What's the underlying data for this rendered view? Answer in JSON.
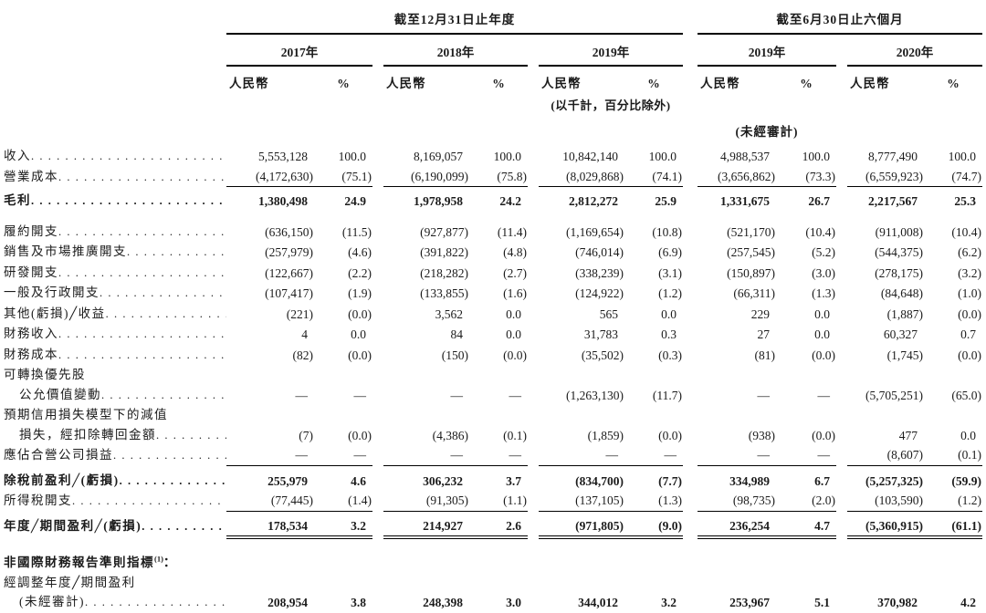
{
  "header": {
    "period_annual": "截至12月31日止年度",
    "period_interim": "截至6月30日止六個月",
    "years_annual": [
      "2017年",
      "2018年",
      "2019年"
    ],
    "years_interim": [
      "2019年",
      "2020年"
    ],
    "currency_label": "人民幣",
    "percent_label": "%",
    "units_note": "(以千計，百分比除外)",
    "unaudited_note": "(未經審計)"
  },
  "table": {
    "rows": [
      {
        "label": "收入",
        "leader": true,
        "values": [
          "5,553,128",
          "100.0",
          "8,169,057",
          "100.0",
          "10,842,140",
          "100.0",
          "4,988,537",
          "100.0",
          "8,777,490",
          "100.0"
        ]
      },
      {
        "label": "營業成本",
        "leader": true,
        "rule": "single",
        "values": [
          "(4,172,630)",
          "(75.1)",
          "(6,190,099)",
          "(75.8)",
          "(8,029,868)",
          "(74.1)",
          "(3,656,862)",
          "(73.3)",
          "(6,559,923)",
          "(74.7)"
        ]
      },
      {
        "label": "毛利",
        "leader": true,
        "bold": true,
        "spacer_before": 4,
        "values": [
          "1,380,498",
          "24.9",
          "1,978,958",
          "24.2",
          "2,812,272",
          "25.9",
          "1,331,675",
          "26.7",
          "2,217,567",
          "25.3"
        ]
      },
      {
        "label": "履約開支",
        "leader": true,
        "spacer_before": 11,
        "values": [
          "(636,150)",
          "(11.5)",
          "(927,877)",
          "(11.4)",
          "(1,169,654)",
          "(10.8)",
          "(521,170)",
          "(10.4)",
          "(911,008)",
          "(10.4)"
        ]
      },
      {
        "label": "銷售及市場推廣開支",
        "leader": true,
        "values": [
          "(257,979)",
          "(4.6)",
          "(391,822)",
          "(4.8)",
          "(746,014)",
          "(6.9)",
          "(257,545)",
          "(5.2)",
          "(544,375)",
          "(6.2)"
        ]
      },
      {
        "label": "研發開支",
        "leader": true,
        "values": [
          "(122,667)",
          "(2.2)",
          "(218,282)",
          "(2.7)",
          "(338,239)",
          "(3.1)",
          "(150,897)",
          "(3.0)",
          "(278,175)",
          "(3.2)"
        ]
      },
      {
        "label": "一般及行政開支",
        "leader": true,
        "values": [
          "(107,417)",
          "(1.9)",
          "(133,855)",
          "(1.6)",
          "(124,922)",
          "(1.2)",
          "(66,311)",
          "(1.3)",
          "(84,648)",
          "(1.0)"
        ]
      },
      {
        "label": "其他(虧損)╱收益",
        "leader": true,
        "values": [
          "(221)",
          "(0.0)",
          "3,562",
          "0.0",
          "565",
          "0.0",
          "229",
          "0.0",
          "(1,887)",
          "(0.0)"
        ]
      },
      {
        "label": "財務收入",
        "leader": true,
        "values": [
          "4",
          "0.0",
          "84",
          "0.0",
          "31,783",
          "0.3",
          "27",
          "0.0",
          "60,327",
          "0.7"
        ]
      },
      {
        "label": "財務成本",
        "leader": true,
        "values": [
          "(82)",
          "(0.0)",
          "(150)",
          "(0.0)",
          "(35,502)",
          "(0.3)",
          "(81)",
          "(0.0)",
          "(1,745)",
          "(0.0)"
        ]
      },
      {
        "label": "可轉換優先股"
      },
      {
        "label": "公允價值變動",
        "indent": true,
        "leader": true,
        "values": [
          "—",
          "—",
          "—",
          "—",
          "(1,263,130)",
          "(11.7)",
          "—",
          "—",
          "(5,705,251)",
          "(65.0)"
        ]
      },
      {
        "label": "預期信用損失模型下的減值"
      },
      {
        "label": "損失，經扣除轉回金額",
        "indent": true,
        "leader": true,
        "values": [
          "(7)",
          "(0.0)",
          "(4,386)",
          "(0.1)",
          "(1,859)",
          "(0.0)",
          "(938)",
          "(0.0)",
          "477",
          "0.0"
        ]
      },
      {
        "label": "應佔合營公司損益",
        "leader": true,
        "rule": "single",
        "values": [
          "—",
          "—",
          "—",
          "—",
          "—",
          "—",
          "—",
          "—",
          "(8,607)",
          "(0.1)"
        ]
      },
      {
        "label": "除稅前盈利╱(虧損)",
        "leader": true,
        "bold": true,
        "spacer_before": 5,
        "values": [
          "255,979",
          "4.6",
          "306,232",
          "3.7",
          "(834,700)",
          "(7.7)",
          "334,989",
          "6.7",
          "(5,257,325)",
          "(59.9)"
        ]
      },
      {
        "label": "所得稅開支",
        "leader": true,
        "rule": "single",
        "values": [
          "(77,445)",
          "(1.4)",
          "(91,305)",
          "(1.1)",
          "(137,105)",
          "(1.3)",
          "(98,735)",
          "(2.0)",
          "(103,590)",
          "(1.2)"
        ]
      },
      {
        "label": "年度╱期間盈利╱(虧損)",
        "leader": true,
        "bold": true,
        "rule": "double",
        "spacer_before": 5,
        "values": [
          "178,534",
          "3.2",
          "214,927",
          "2.6",
          "(971,805)",
          "(9.0)",
          "236,254",
          "4.7",
          "(5,360,915)",
          "(61.1)"
        ]
      },
      {
        "label": "非國際財務報告準則指標",
        "sup": "(1)",
        "suffix": "：",
        "bold": true,
        "spacer_before": 18
      },
      {
        "label": "經調整年度╱期間盈利"
      },
      {
        "label": "(未經審計)",
        "indent": true,
        "leader": true,
        "bold_values": true,
        "values": [
          "208,954",
          "3.8",
          "248,398",
          "3.0",
          "344,012",
          "3.2",
          "253,967",
          "5.1",
          "370,982",
          "4.2"
        ]
      }
    ]
  }
}
